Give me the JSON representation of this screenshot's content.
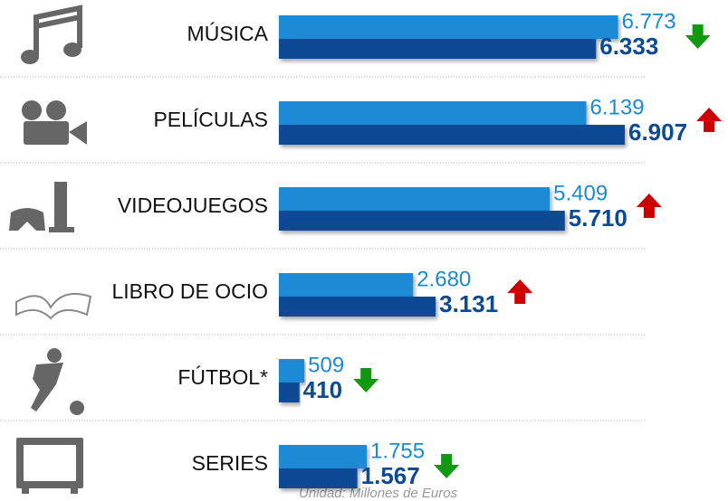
{
  "chart_data": {
    "type": "bar",
    "orientation": "horizontal",
    "categories": [
      "MÚSICA",
      "PELÍCULAS",
      "VIDEOJUEGOS",
      "LIBRO DE OCIO",
      "FÚTBOL*",
      "SERIES"
    ],
    "series": [
      {
        "color": "#1a8ad4",
        "values": [
          6773,
          6139,
          5409,
          2680,
          509,
          1755
        ],
        "value_labels": [
          "6.773",
          "6.139",
          "5.409",
          "2.680",
          "509",
          "1.755"
        ]
      },
      {
        "color": "#0c4a94",
        "values": [
          6333,
          6907,
          5710,
          3131,
          410,
          1567
        ],
        "value_labels": [
          "6.333",
          "6.907",
          "5.710",
          "3.131",
          "410",
          "1.567"
        ]
      }
    ],
    "note": "Unidad: Millones de Euros"
  }
}
